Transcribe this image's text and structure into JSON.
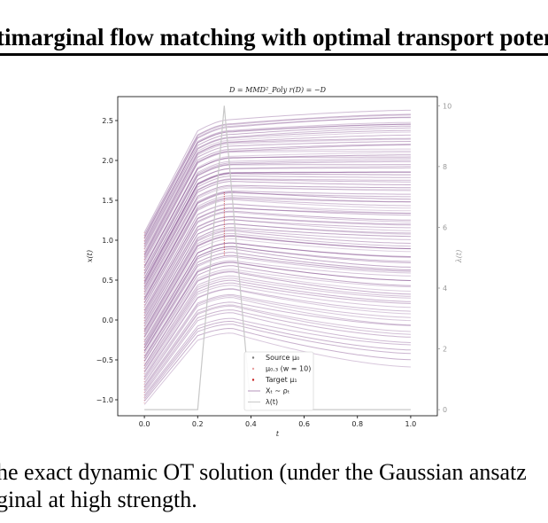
{
  "header": {
    "title": "timarginal flow matching with optimal transport poten"
  },
  "caption": {
    "line1": "he exact dynamic OT solution (under the Gaussian ansatz",
    "line2": "ginal at high strength."
  },
  "colors": {
    "trajectory": "#6a2a78",
    "lambda": "#c8c8c8",
    "target": "#c81e1e",
    "axis": "#000000",
    "right_axis": "#999999"
  },
  "chart_data": {
    "type": "line",
    "title": "D = MMD²_Poly    r(D) = −D",
    "xlabel": "t",
    "ylabel": "x(t)",
    "ylabel_right": "λ(t)",
    "xlim": [
      -0.1,
      1.1
    ],
    "ylim": [
      -1.2,
      2.8
    ],
    "ylim_right": [
      -0.2,
      10.3
    ],
    "x_ticks": [
      "0.0",
      "0.2",
      "0.4",
      "0.6",
      "0.8",
      "1.0"
    ],
    "y_ticks": [
      "−1.0",
      "−0.5",
      "0.0",
      "0.5",
      "1.0",
      "1.5",
      "2.0",
      "2.5"
    ],
    "y_ticks_right": [
      "0",
      "2",
      "4",
      "6",
      "8",
      "10"
    ],
    "legend": {
      "position": "bottom-center",
      "entries": [
        "Source μ₀",
        "μ₀.₃ (w = 10)",
        "Target μ₁",
        "Xₜ ∼ ρₜ",
        "λ(t)"
      ]
    },
    "series_summary": {
      "n_trajectories": 100,
      "source_range_at_t0": [
        -1.05,
        1.1
      ],
      "peak_time": 0.33,
      "peak_range": [
        -0.18,
        2.5
      ],
      "end_range_at_t1": [
        -0.58,
        2.62
      ],
      "intermediate_marginal_t": 0.3,
      "intermediate_marginal_range": [
        0.8,
        1.6
      ]
    },
    "lambda": {
      "x": [
        0.0,
        0.2,
        0.3,
        0.4,
        1.0
      ],
      "y": [
        0,
        0,
        10,
        0,
        0
      ]
    }
  }
}
